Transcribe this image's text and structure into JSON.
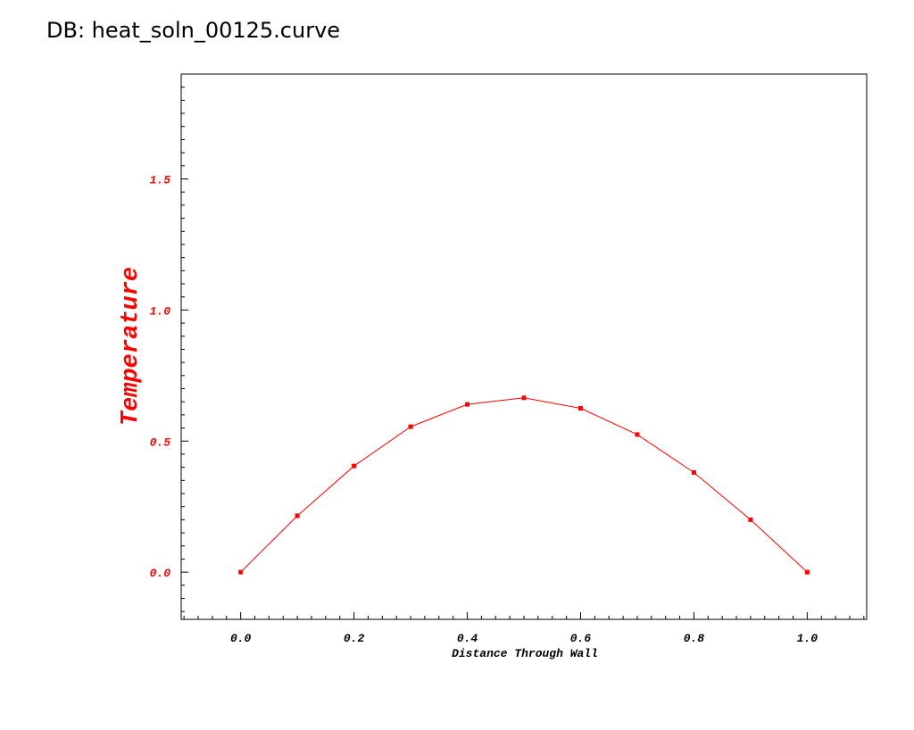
{
  "header": {
    "db_label": "DB: heat_soln_00125.curve"
  },
  "colors": {
    "series": "#ff0000",
    "axis": "#000000",
    "ylabel": "#ff0000"
  },
  "chart_data": {
    "type": "line",
    "title": "",
    "xlabel": "Distance Through Wall",
    "ylabel": "Temperature",
    "xlim": [
      -0.105,
      1.105
    ],
    "ylim": [
      -0.18,
      1.9
    ],
    "xticks": [
      0.0,
      0.2,
      0.4,
      0.6,
      0.8,
      1.0
    ],
    "xtick_labels": [
      "0.0",
      "0.2",
      "0.4",
      "0.6",
      "0.8",
      "1.0"
    ],
    "yticks": [
      0.0,
      0.5,
      1.0,
      1.5
    ],
    "ytick_labels": [
      "0.0",
      "0.5",
      "1.0",
      "1.5"
    ],
    "grid": false,
    "series": [
      {
        "x": [
          0.0,
          0.1,
          0.2,
          0.3,
          0.4,
          0.5,
          0.6,
          0.7,
          0.8,
          0.9,
          1.0
        ],
        "y": [
          0.0,
          0.215,
          0.405,
          0.555,
          0.64,
          0.665,
          0.625,
          0.525,
          0.38,
          0.2,
          0.0
        ]
      }
    ]
  }
}
